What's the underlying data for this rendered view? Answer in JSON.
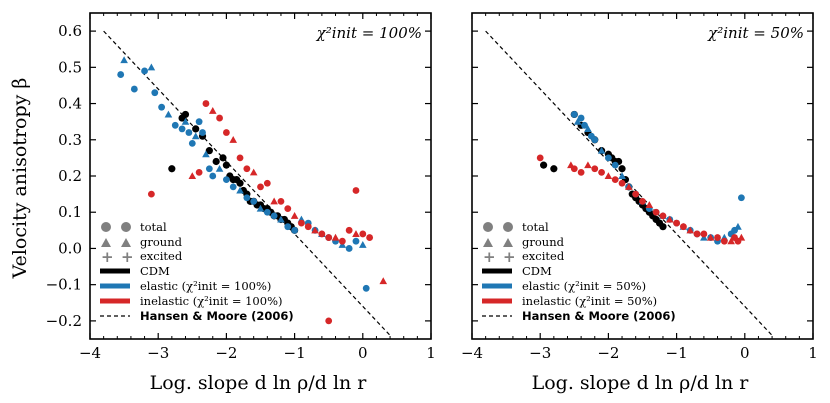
{
  "chart_data": {
    "type": "scatter",
    "ylabel": "Velocity anisotropy β",
    "colors": {
      "cdm": "#000000",
      "elastic": "#1f77b4",
      "inelastic": "#d62728",
      "legend_marker": "#808080"
    },
    "panels": [
      {
        "xlabel": "Log. slope d ln ρ/d ln r",
        "annotation": "χ²init = 100%",
        "xlim": [
          -4,
          1
        ],
        "ylim": [
          -0.25,
          0.65
        ],
        "xticks": [
          "−4",
          "−3",
          "−2",
          "−1",
          "0",
          "1"
        ],
        "yticks": [
          "−0.2",
          "−0.1",
          "0.0",
          "0.1",
          "0.2",
          "0.3",
          "0.4",
          "0.5",
          "0.6"
        ],
        "legend": {
          "markers": [
            "total",
            "ground",
            "excited"
          ],
          "lines": [
            "CDM",
            "elastic (χ²init = 100%)",
            "inelastic (χ²init = 100%)",
            "Hansen & Moore (2006)"
          ]
        },
        "reference_line": {
          "name": "Hansen & Moore (2006)",
          "x": [
            -3.8,
            0.4
          ],
          "y": [
            0.6,
            -0.24
          ]
        },
        "series": [
          {
            "name": "CDM",
            "x": [
              -2.8,
              -2.65,
              -2.6,
              -2.45,
              -2.35,
              -2.25,
              -2.15,
              -2.05,
              -2.0,
              -1.95,
              -1.9,
              -1.85,
              -1.8,
              -1.75,
              -1.7,
              -1.65,
              -1.6,
              -1.55,
              -1.5,
              -1.45,
              -1.4,
              -1.35,
              -1.3,
              -1.25,
              -1.2,
              -1.15,
              -1.1,
              -1.05,
              -1.0
            ],
            "y": [
              0.22,
              0.36,
              0.37,
              0.33,
              0.31,
              0.27,
              0.24,
              0.25,
              0.23,
              0.2,
              0.19,
              0.19,
              0.18,
              0.16,
              0.15,
              0.13,
              0.13,
              0.12,
              0.12,
              0.11,
              0.11,
              0.1,
              0.09,
              0.09,
              0.08,
              0.08,
              0.07,
              0.06,
              0.05
            ]
          },
          {
            "name": "elastic",
            "x": [
              -3.55,
              -3.5,
              -3.35,
              -3.2,
              -3.1,
              -3.05,
              -2.95,
              -2.85,
              -2.75,
              -2.65,
              -2.6,
              -2.55,
              -2.5,
              -2.45,
              -2.4,
              -2.35,
              -2.3,
              -2.25,
              -2.2,
              -2.1,
              -2.0,
              -1.9,
              -1.8,
              -1.7,
              -1.6,
              -1.5,
              -1.4,
              -1.3,
              -1.2,
              -1.1,
              -1.0,
              -0.9,
              -0.8,
              -0.7,
              -0.6,
              -0.5,
              -0.4,
              -0.3,
              -0.2,
              -0.1,
              0.0,
              0.05
            ],
            "y": [
              0.48,
              0.52,
              0.44,
              0.49,
              0.5,
              0.43,
              0.39,
              0.37,
              0.34,
              0.33,
              0.35,
              0.32,
              0.29,
              0.31,
              0.35,
              0.32,
              0.26,
              0.22,
              0.2,
              0.22,
              0.19,
              0.17,
              0.16,
              0.14,
              0.13,
              0.11,
              0.1,
              0.09,
              0.08,
              0.06,
              0.05,
              0.08,
              0.07,
              0.05,
              0.04,
              0.03,
              0.02,
              0.01,
              0.0,
              0.02,
              0.01,
              -0.11
            ]
          },
          {
            "name": "inelastic",
            "x": [
              -3.1,
              -2.5,
              -2.4,
              -2.3,
              -2.2,
              -2.1,
              -2.0,
              -1.9,
              -1.8,
              -1.7,
              -1.6,
              -1.5,
              -1.4,
              -1.3,
              -1.2,
              -1.1,
              -1.0,
              -0.9,
              -0.8,
              -0.7,
              -0.6,
              -0.5,
              -0.4,
              -0.3,
              -0.2,
              -0.1,
              0.0,
              0.1,
              0.3,
              -0.5,
              -0.1
            ],
            "y": [
              0.15,
              0.2,
              0.21,
              0.4,
              0.38,
              0.36,
              0.32,
              0.3,
              0.25,
              0.22,
              0.21,
              0.17,
              0.18,
              0.13,
              0.13,
              0.11,
              0.09,
              0.07,
              0.06,
              0.05,
              0.04,
              0.03,
              0.03,
              0.02,
              0.05,
              0.04,
              0.04,
              0.03,
              -0.09,
              -0.2,
              0.16
            ]
          }
        ]
      },
      {
        "xlabel": "Log. slope d ln ρ/d ln r",
        "annotation": "χ²init = 50%",
        "xlim": [
          -4,
          1
        ],
        "ylim": [
          -0.25,
          0.65
        ],
        "xticks": [
          "−4",
          "−3",
          "−2",
          "−1",
          "0",
          "1"
        ],
        "legend": {
          "markers": [
            "total",
            "ground",
            "excited"
          ],
          "lines": [
            "CDM",
            "elastic (χ²init = 50%)",
            "inelastic (χ²init = 50%)",
            "Hansen & Moore (2006)"
          ]
        },
        "reference_line": {
          "name": "Hansen & Moore (2006)",
          "x": [
            -3.8,
            0.4
          ],
          "y": [
            0.6,
            -0.24
          ]
        },
        "series": [
          {
            "name": "CDM",
            "x": [
              -2.95,
              -2.8,
              -2.5,
              -2.4,
              -2.3,
              -2.2,
              -2.1,
              -2.0,
              -1.95,
              -1.9,
              -1.85,
              -1.8,
              -1.75,
              -1.7,
              -1.65,
              -1.6,
              -1.55,
              -1.5,
              -1.45,
              -1.4,
              -1.35,
              -1.3,
              -1.25,
              -1.2
            ],
            "y": [
              0.23,
              0.22,
              0.37,
              0.34,
              0.32,
              0.3,
              0.27,
              0.26,
              0.25,
              0.24,
              0.24,
              0.22,
              0.19,
              0.17,
              0.15,
              0.14,
              0.13,
              0.12,
              0.11,
              0.1,
              0.09,
              0.08,
              0.07,
              0.06
            ]
          },
          {
            "name": "elastic",
            "x": [
              -2.5,
              -2.45,
              -2.4,
              -2.35,
              -2.3,
              -2.25,
              -2.2,
              -2.1,
              -2.0,
              -1.9,
              -1.8,
              -1.7,
              -1.6,
              -1.5,
              -1.4,
              -1.3,
              -1.2,
              -1.1,
              -1.0,
              -0.9,
              -0.8,
              -0.7,
              -0.6,
              -0.5,
              -0.4,
              -0.3,
              -0.2,
              -0.15,
              -0.1,
              -0.05
            ],
            "y": [
              0.37,
              0.35,
              0.36,
              0.34,
              0.33,
              0.31,
              0.3,
              0.27,
              0.25,
              0.23,
              0.2,
              0.17,
              0.15,
              0.13,
              0.11,
              0.1,
              0.09,
              0.08,
              0.07,
              0.06,
              0.05,
              0.04,
              0.03,
              0.03,
              0.02,
              0.03,
              0.04,
              0.05,
              0.06,
              0.14
            ]
          },
          {
            "name": "inelastic",
            "x": [
              -3.0,
              -2.55,
              -2.5,
              -2.4,
              -2.3,
              -2.2,
              -2.1,
              -2.0,
              -1.9,
              -1.8,
              -1.7,
              -1.6,
              -1.5,
              -1.4,
              -1.3,
              -1.2,
              -1.1,
              -1.0,
              -0.9,
              -0.8,
              -0.7,
              -0.6,
              -0.5,
              -0.4,
              -0.3,
              -0.2,
              -0.15,
              -0.1,
              -0.05
            ],
            "y": [
              0.25,
              0.23,
              0.22,
              0.21,
              0.23,
              0.22,
              0.21,
              0.2,
              0.19,
              0.18,
              0.17,
              0.15,
              0.13,
              0.12,
              0.1,
              0.09,
              0.08,
              0.07,
              0.06,
              0.05,
              0.04,
              0.04,
              0.03,
              0.03,
              0.02,
              0.02,
              0.03,
              0.02,
              0.03
            ]
          }
        ]
      }
    ]
  }
}
